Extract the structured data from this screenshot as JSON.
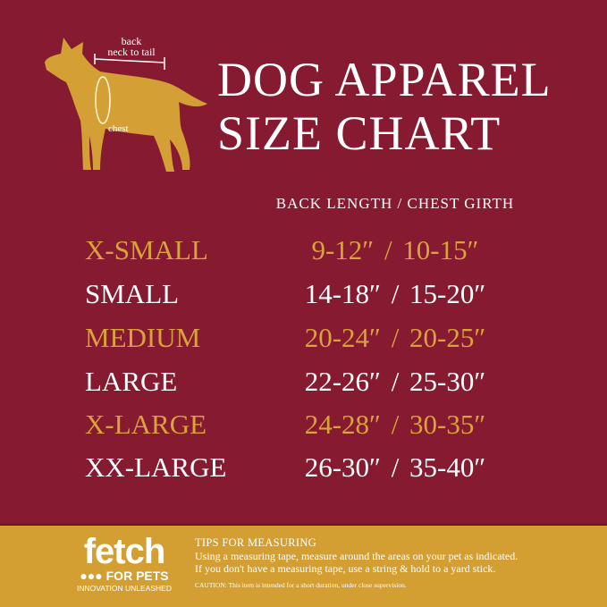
{
  "colors": {
    "background": "#861a31",
    "accent_gold": "#d9a23a",
    "footer": "#d39e32",
    "text": "#ffffff"
  },
  "diagram": {
    "back_label_line1": "back",
    "back_label_line2": "neck to tail",
    "chest_label": "chest",
    "icon": "dog-silhouette-icon"
  },
  "title": {
    "line1": "DOG APPAREL",
    "line2": "SIZE CHART"
  },
  "column_header": "BACK LENGTH / CHEST GIRTH",
  "sizes": [
    {
      "size": "X-SMALL",
      "value": "9-12″  /  10-15″",
      "color": "gold"
    },
    {
      "size": "SMALL",
      "value": "14-18″  /  15-20″",
      "color": "white"
    },
    {
      "size": "MEDIUM",
      "value": "20-24″  /  20-25″",
      "color": "gold"
    },
    {
      "size": "LARGE",
      "value": "22-26″  /  25-30″",
      "color": "white"
    },
    {
      "size": "X-LARGE",
      "value": "24-28″  /  30-35″",
      "color": "gold"
    },
    {
      "size": "XX-LARGE",
      "value": "26-30″  /  35-40″",
      "color": "white"
    }
  ],
  "footer": {
    "logo": {
      "word": "fetch",
      "sub": "FOR PETS",
      "tagline": "INNOVATION UNLEASHED"
    },
    "tips_heading": "TIPS FOR MEASURING",
    "tips": [
      "Using a measuring tape, measure around the areas on your pet as indicated.",
      "If you don't have a measuring tape, use a string & hold to a yard stick."
    ],
    "caution": "CAUTION: This item is intended for a short duration, under close supervision."
  }
}
